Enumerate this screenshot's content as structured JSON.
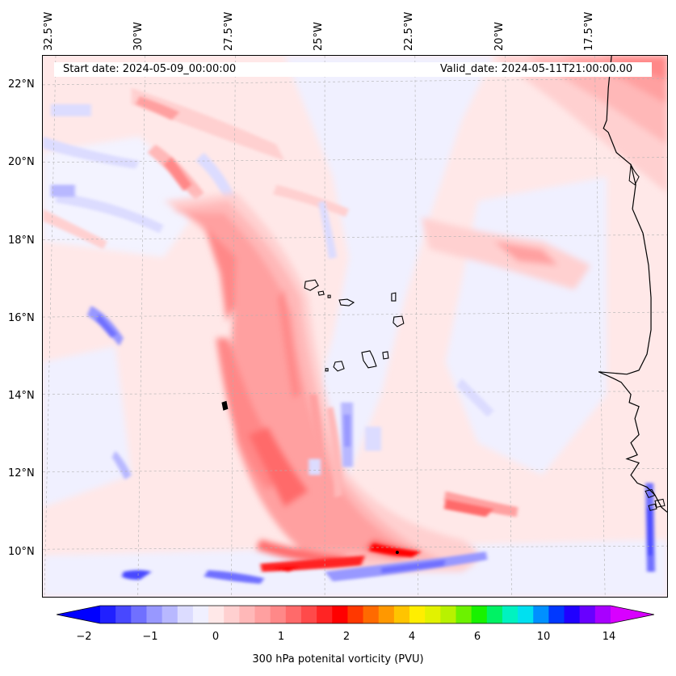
{
  "map": {
    "start_date": "Start date: 2024-05-09_00:00:00",
    "valid_date": "Valid_date: 2024-05-11T21:00:00.00",
    "lon_labels": [
      "32.5°W",
      "30°W",
      "27.5°W",
      "25°W",
      "22.5°W",
      "20°W",
      "17.5°W"
    ],
    "lat_labels": [
      "22°N",
      "20°N",
      "18°N",
      "16°N",
      "14°N",
      "12°N",
      "10°N"
    ]
  },
  "colorbar": {
    "label": "300 hPa potenital vorticity (PVU)",
    "ticks": [
      "−2",
      "−1",
      "0",
      "1",
      "2",
      "4",
      "6",
      "10",
      "14"
    ],
    "colors": [
      "#0000ff",
      "#2020ff",
      "#4848ff",
      "#7070ff",
      "#9898ff",
      "#b8b8ff",
      "#dcdcff",
      "#f0f0ff",
      "#ffe8e8",
      "#ffd0d0",
      "#ffb8b8",
      "#ffa0a0",
      "#ff8888",
      "#ff6a6a",
      "#ff4a4a",
      "#ff2424",
      "#ff0000",
      "#ff3800",
      "#ff6a00",
      "#ff9800",
      "#ffc400",
      "#ffee00",
      "#e2f200",
      "#b8f200",
      "#6cf200",
      "#18f200",
      "#00f264",
      "#00f2c0",
      "#00e0f0",
      "#0090ff",
      "#0038ff",
      "#2000ff",
      "#6800ff",
      "#a800ff",
      "#d800ff"
    ]
  }
}
